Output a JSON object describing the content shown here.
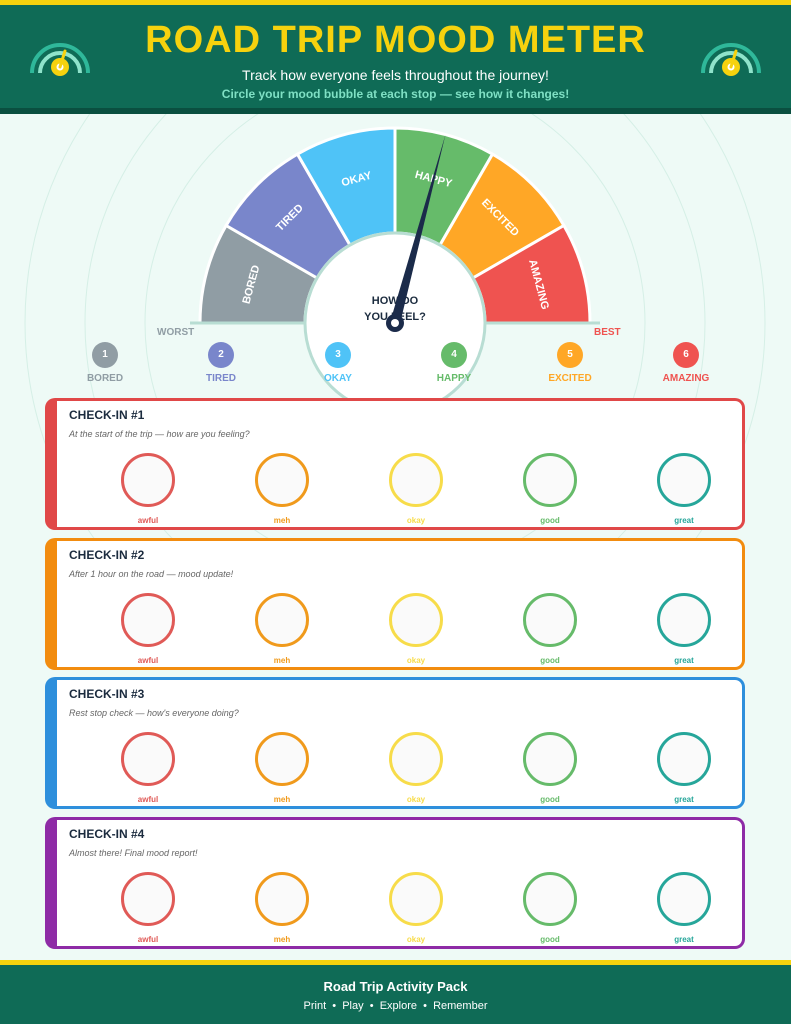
{
  "header": {
    "title": "ROAD TRIP MOOD METER",
    "subtitle": "Track how everyone feels throughout the journey!",
    "instructions": "Circle your mood bubble at each stop — see how it changes!"
  },
  "gauge": {
    "center_label_line1": "HOW DO",
    "center_label_line2": "YOU FEEL?",
    "segments": [
      {
        "label": "BORED",
        "color": "#909da4"
      },
      {
        "label": "TIRED",
        "color": "#7986cb"
      },
      {
        "label": "OKAY",
        "color": "#4fc3f7"
      },
      {
        "label": "HAPPY",
        "color": "#66bb6a"
      },
      {
        "label": "EXCITED",
        "color": "#ffa726"
      },
      {
        "label": "AMAZING",
        "color": "#ef5350"
      }
    ],
    "worst_label": "WORST",
    "best_label": "BEST",
    "needle_value": 3.5
  },
  "scale": [
    {
      "number": "1",
      "label": "BORED",
      "color": "#909da4"
    },
    {
      "number": "2",
      "label": "TIRED",
      "color": "#7986cb"
    },
    {
      "number": "3",
      "label": "OKAY",
      "color": "#4fc3f7"
    },
    {
      "number": "4",
      "label": "HAPPY",
      "color": "#66bb6a"
    },
    {
      "number": "5",
      "label": "EXCITED",
      "color": "#ffa726"
    },
    {
      "number": "6",
      "label": "AMAZING",
      "color": "#ef5350"
    }
  ],
  "checkins": [
    {
      "title": "CHECK-IN #1",
      "prompt": "At the start of the trip — how are you feeling?",
      "color": "#e04848"
    },
    {
      "title": "CHECK-IN #2",
      "prompt": "After 1 hour on the road — mood update!",
      "color": "#f28c0f"
    },
    {
      "title": "CHECK-IN #3",
      "prompt": "Rest stop check — how's everyone doing?",
      "color": "#2e8fdc"
    },
    {
      "title": "CHECK-IN #4",
      "prompt": "Almost there! Final mood report!",
      "color": "#8e2ba6"
    }
  ],
  "moods": [
    {
      "label": "awful",
      "color": "#e05a57"
    },
    {
      "label": "meh",
      "color": "#f09a1c"
    },
    {
      "label": "okay",
      "color": "#f7dc4a"
    },
    {
      "label": "good",
      "color": "#66bb6a"
    },
    {
      "label": "great",
      "color": "#26a69a"
    }
  ],
  "footer": {
    "title": "Road Trip Activity Pack",
    "links": [
      "Print",
      "Play",
      "Explore",
      "Remember"
    ]
  }
}
